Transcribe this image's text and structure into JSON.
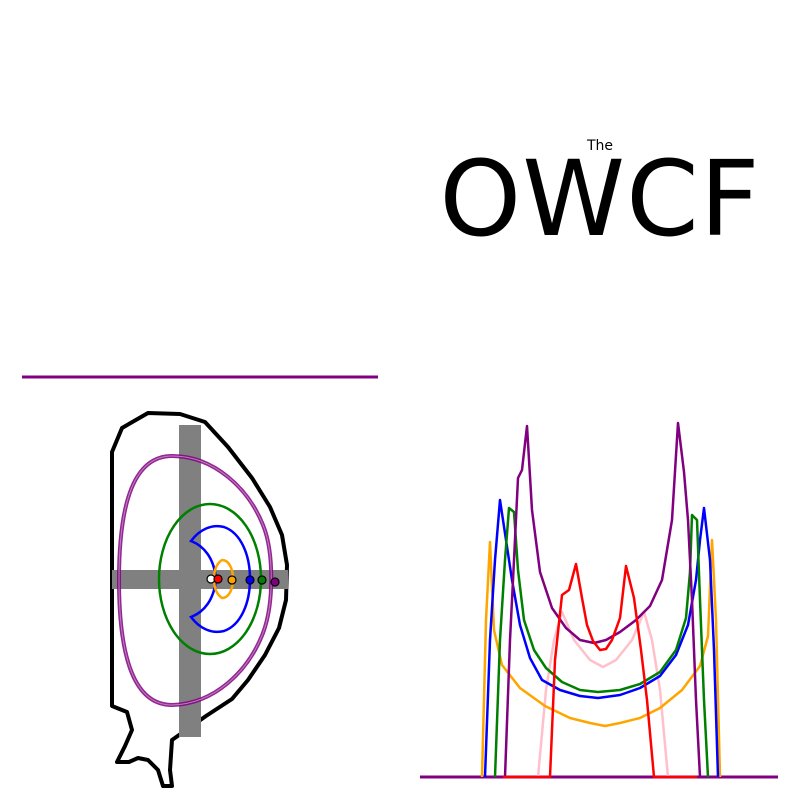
{
  "logo": {
    "small_text": "The",
    "big_text": "OWCF"
  },
  "colors": {
    "background": "#ffffff",
    "wall": "#000000",
    "diagnostic_lines": "#808080",
    "separatrix": "#800080",
    "flux_green": "#008000",
    "flux_blue": "#0000ff",
    "flux_orange": "#ffa500",
    "curve_red": "#ff0000",
    "curve_pink": "#ffc0cb",
    "curve_purple": "#800080",
    "curve_green": "#008000",
    "curve_blue": "#0000ff",
    "curve_orange": "#ffa500"
  },
  "markers": [
    "white",
    "red",
    "orange",
    "blue",
    "green",
    "purple"
  ]
}
